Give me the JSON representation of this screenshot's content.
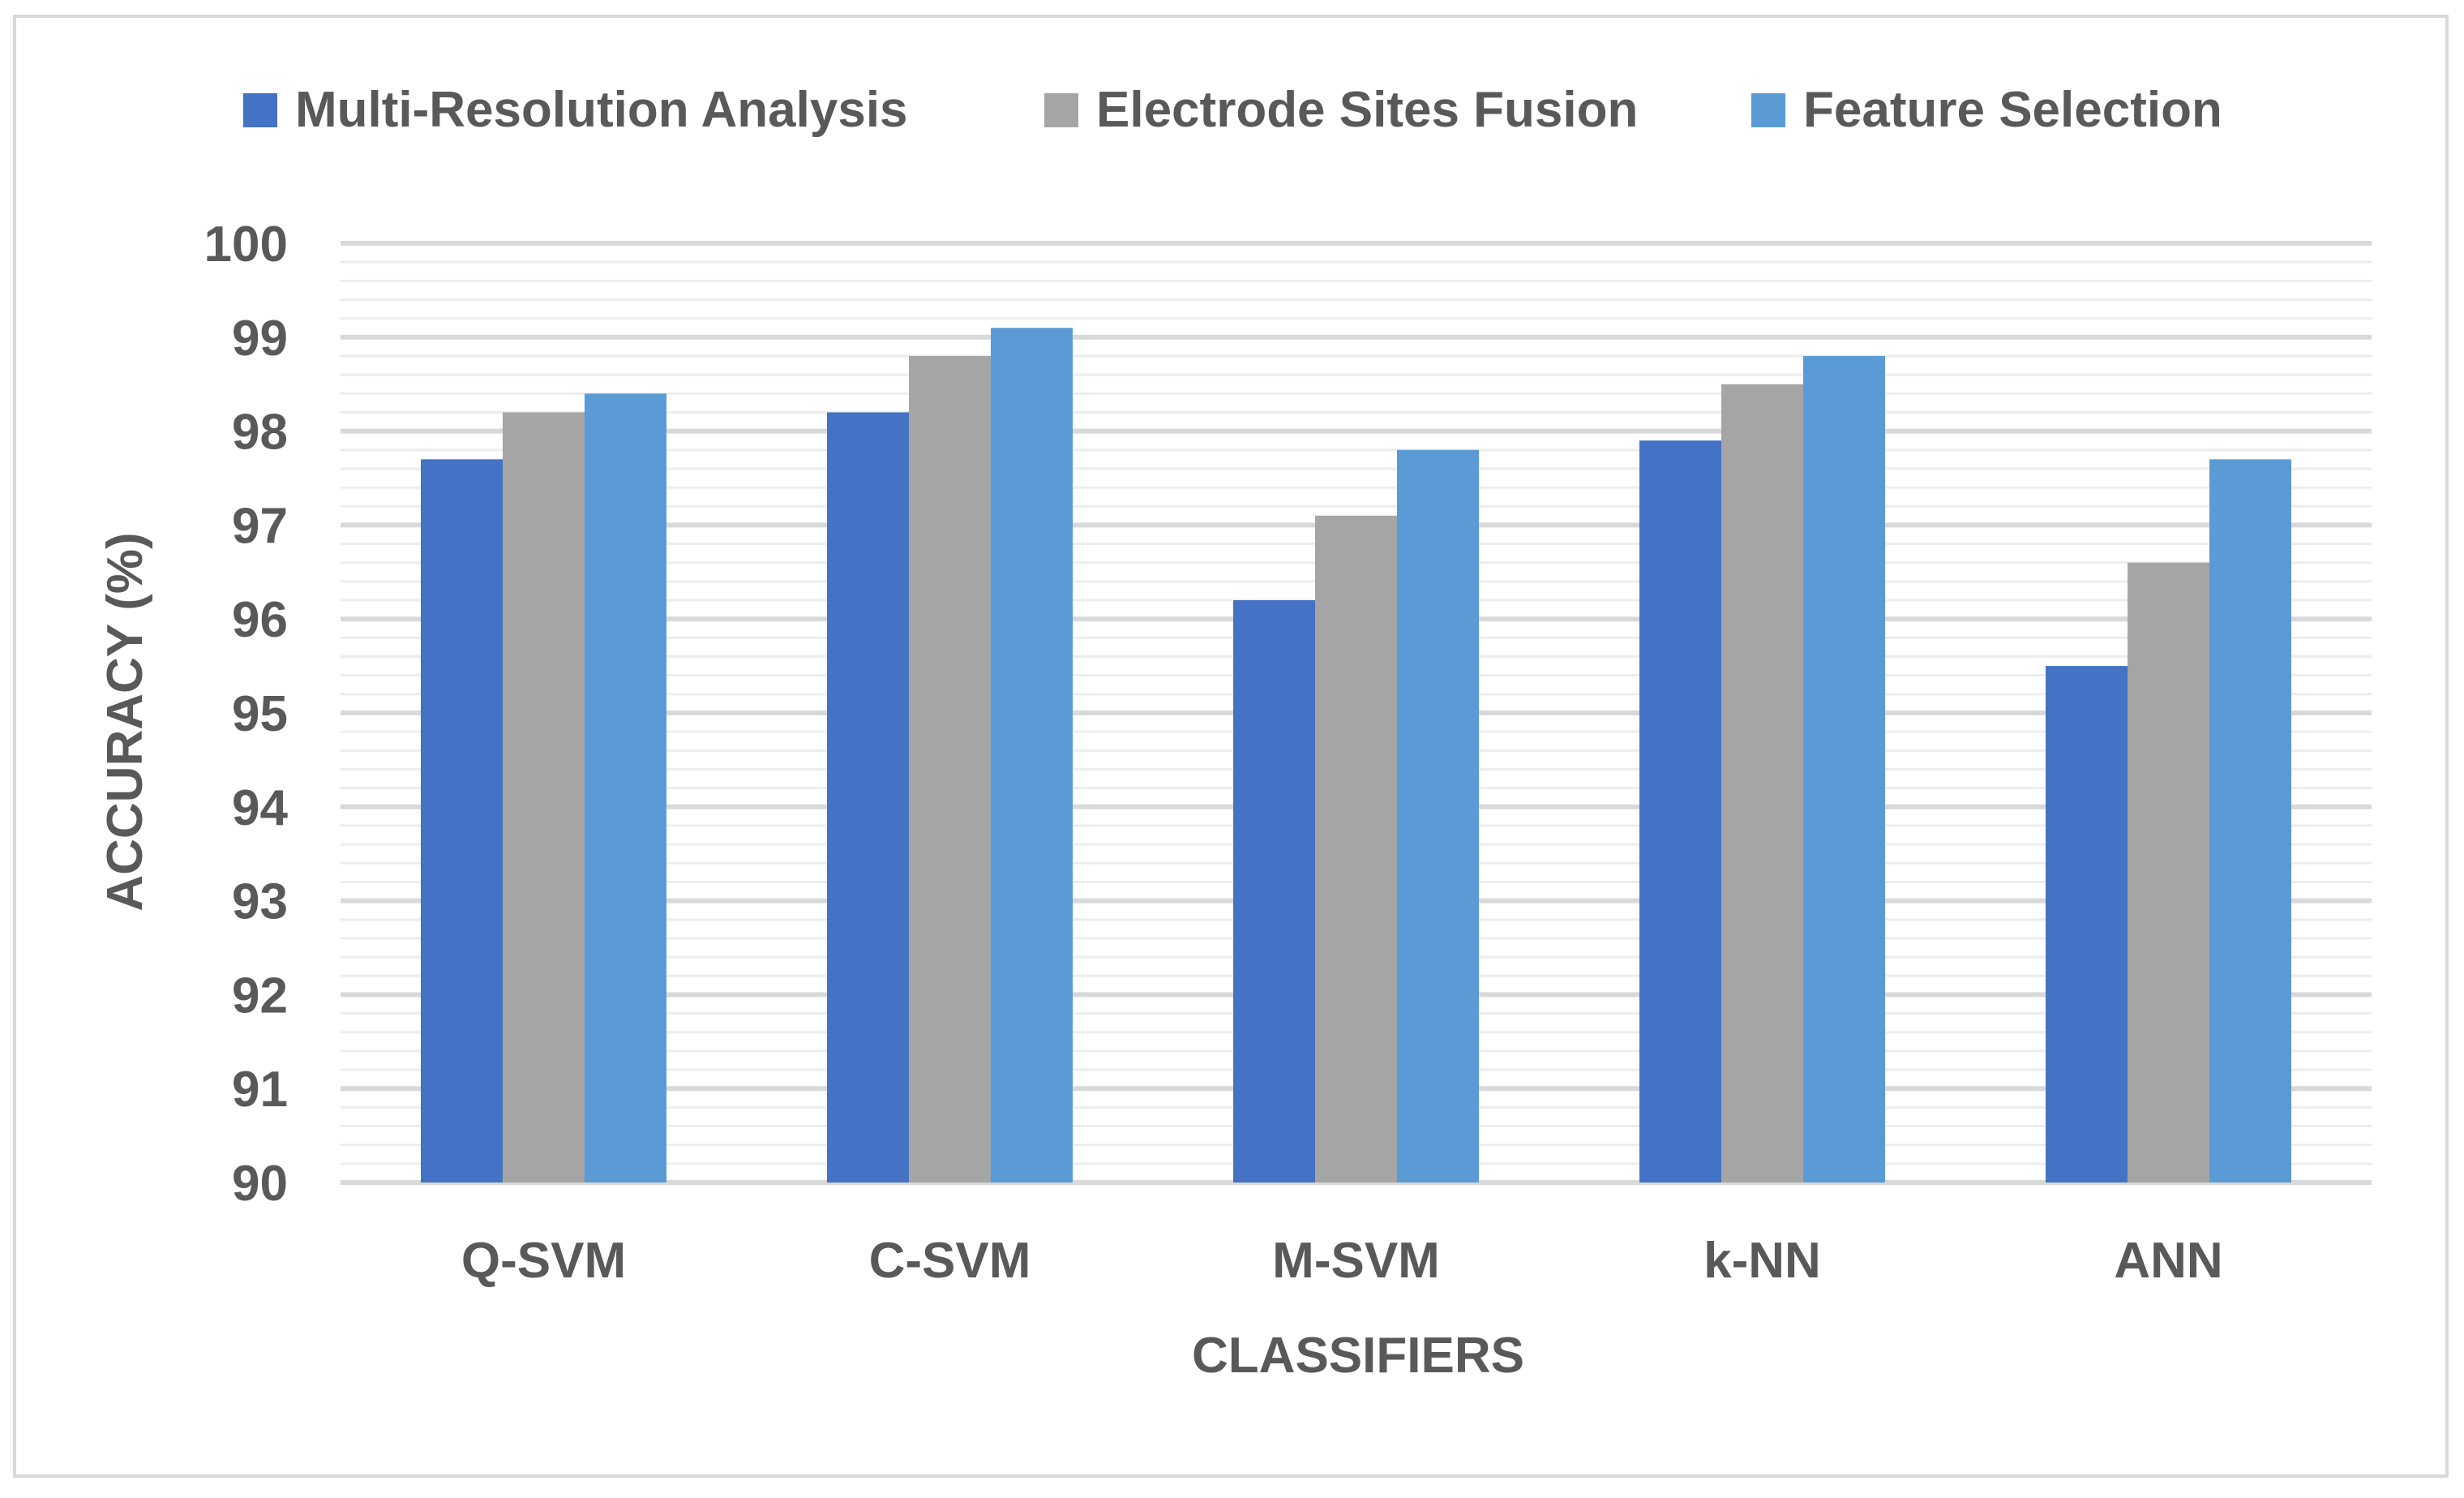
{
  "chart_data": {
    "type": "bar",
    "categories": [
      "Q-SVM",
      "C-SVM",
      "M-SVM",
      "k-NN",
      "ANN"
    ],
    "series": [
      {
        "name": "Multi-Resolution Analysis",
        "color": "#4472C4",
        "values": [
          97.7,
          98.2,
          96.2,
          97.9,
          95.5
        ]
      },
      {
        "name": "Electrode Sites Fusion",
        "color": "#A5A5A5",
        "values": [
          98.2,
          98.8,
          97.1,
          98.5,
          96.6
        ]
      },
      {
        "name": "Feature Selection",
        "color": "#5B9BD5",
        "values": [
          98.4,
          99.1,
          97.8,
          98.8,
          97.7
        ]
      }
    ],
    "xlabel": "CLASSIFIERS",
    "ylabel": "ACCURACY (%)",
    "ylim": [
      90,
      100
    ],
    "yticks": [
      "90",
      "91",
      "92",
      "93",
      "94",
      "95",
      "96",
      "97",
      "98",
      "99",
      "100"
    ],
    "legend_position": "top",
    "grid": true
  }
}
